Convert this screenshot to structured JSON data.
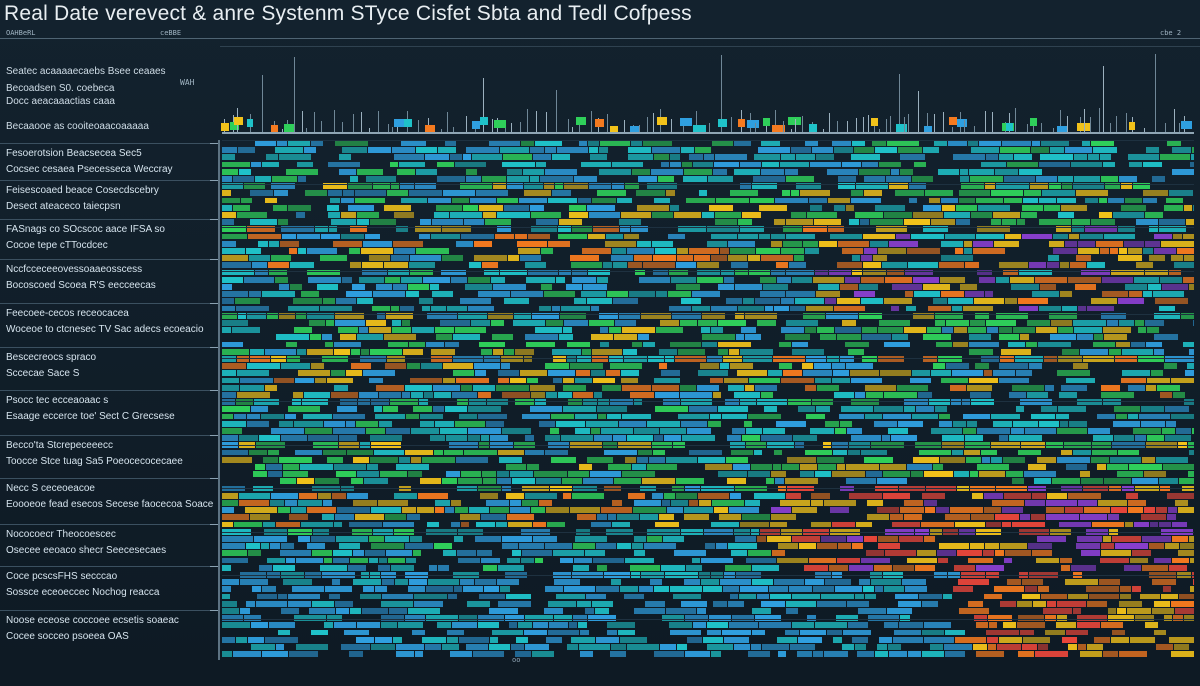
{
  "header": {
    "title": "Real Date verevect & anre  Systenm STyce Cisfet Sbta and Tedl Cofpess",
    "top_labels": [
      "OAHBeRL",
      "ceBBE",
      "cbe 2"
    ],
    "readout": "WAH"
  },
  "summary": {
    "lines": [
      "Seatec acaaaaecaebs Bsee ceaaes",
      "Becoadsen S0. coebeca",
      "Docc aeacaaactias caaa",
      "Becaaooe as cooiteoaacoaaaaa"
    ]
  },
  "groups": [
    {
      "line1": "Fesoerotsion Beacsecea Sec5",
      "line2": "Cocsec cesaea Psecesseca Weccray"
    },
    {
      "line1": "Feisescoaed beace Cosecdscebry",
      "line2": "Desect ateaceco taiecpsn"
    },
    {
      "line1": "FASnags co SOcscoc aace IFSA so",
      "line2": "Cocoe tepe cTTocdcec"
    },
    {
      "line1": "Nccfcceceeovessoaaeosscess",
      "line2": "Bocoscoed Scoea R'S eecceecas"
    },
    {
      "line1": "Feecoee-cecos receocacea",
      "line2": "Woceoe to ctcnesec TV Sac adecs ecoeacio"
    },
    {
      "line1": "Bescecreocs spraco",
      "line2": "Sccecae                Sace S"
    },
    {
      "line1": "Psocc tec ecceaoaac s",
      "line2": "Esaage eccerce toe' Sect C Grecsese"
    },
    {
      "line1": "Becco'ta Stcrepeceeecc",
      "line2": "Toocce Stce tuag Sa5 Poeocecocecaee"
    },
    {
      "line1": "Necc S ceceoeacoe",
      "line2": "Eoooeoe fead esecos Secese faocecoa Soace"
    },
    {
      "line1": "Nococoecr Theocoescec",
      "line2": "Osecee eeoaco shecr Seecesecaes"
    },
    {
      "line1": "Coce pcscsFHS secccao",
      "line2": "Sossce eceoeccec Nochog reacca"
    },
    {
      "line1": "Noose eceose coccoee ecsetis soaeac",
      "line2": "Cocee socceo psoeea OAS"
    }
  ],
  "footer": {
    "label": "oo"
  },
  "colors": {
    "background": "#0f1c26",
    "blue": "#2f9fe0",
    "teal": "#1fc2c9",
    "green": "#2fcf5a",
    "yellow": "#f2c21a",
    "orange": "#f57a1f",
    "red": "#e8463a",
    "purple": "#8a3fd0"
  }
}
